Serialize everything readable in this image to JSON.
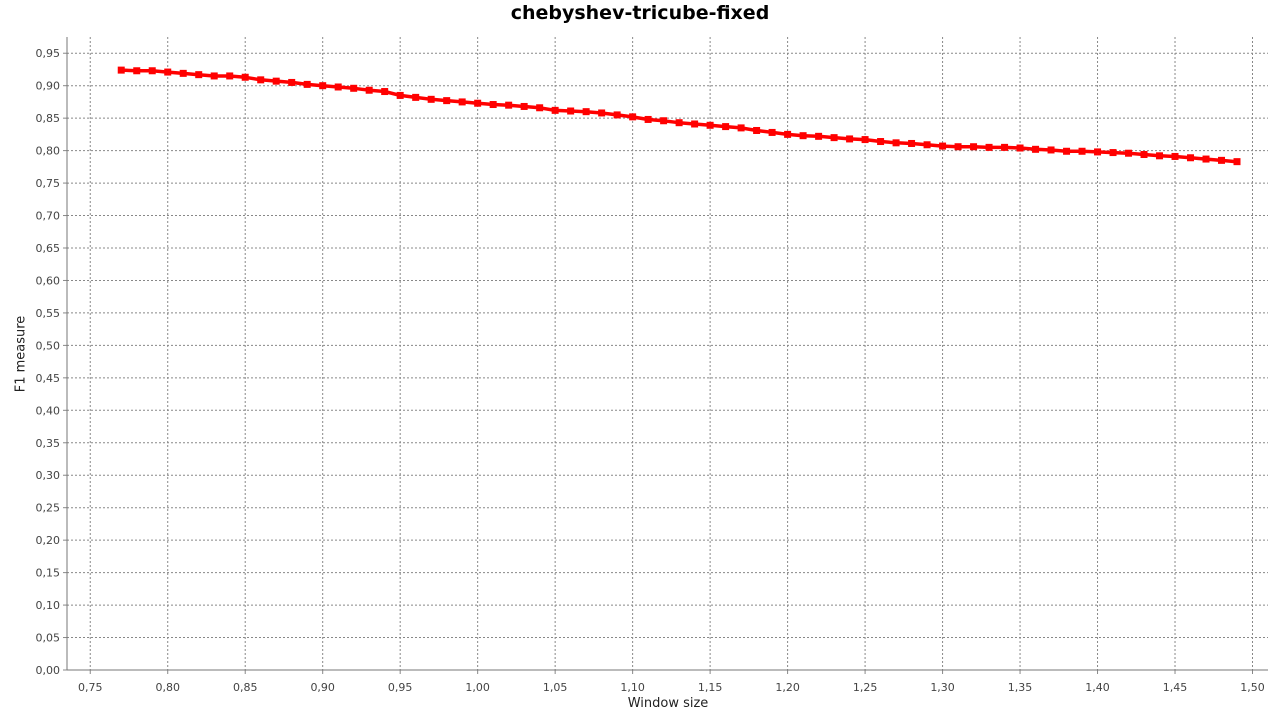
{
  "chart_data": {
    "type": "line",
    "title": "chebyshev-tricube-fixed",
    "xlabel": "Window size",
    "ylabel": "F1 measure",
    "xlim": [
      0.735,
      1.51
    ],
    "ylim": [
      0.0,
      0.975
    ],
    "x_ticks": [
      "0,75",
      "0,80",
      "0,85",
      "0,90",
      "0,95",
      "1,00",
      "1,05",
      "1,10",
      "1,15",
      "1,20",
      "1,25",
      "1,30",
      "1,35",
      "1,40",
      "1,45",
      "1,50"
    ],
    "y_ticks": [
      "0,00",
      "0,05",
      "0,10",
      "0,15",
      "0,20",
      "0,25",
      "0,30",
      "0,35",
      "0,40",
      "0,45",
      "0,50",
      "0,55",
      "0,60",
      "0,65",
      "0,70",
      "0,75",
      "0,80",
      "0,85",
      "0,90",
      "0,95"
    ],
    "grid": true,
    "legend": "none",
    "series": [
      {
        "color": "#ff0000",
        "marker": "square",
        "x": [
          0.77,
          0.78,
          0.79,
          0.8,
          0.81,
          0.82,
          0.83,
          0.84,
          0.85,
          0.86,
          0.87,
          0.88,
          0.89,
          0.9,
          0.91,
          0.92,
          0.93,
          0.94,
          0.95,
          0.96,
          0.97,
          0.98,
          0.99,
          1.0,
          1.01,
          1.02,
          1.03,
          1.04,
          1.05,
          1.06,
          1.07,
          1.08,
          1.09,
          1.1,
          1.11,
          1.12,
          1.13,
          1.14,
          1.15,
          1.16,
          1.17,
          1.18,
          1.19,
          1.2,
          1.21,
          1.22,
          1.23,
          1.24,
          1.25,
          1.26,
          1.27,
          1.28,
          1.29,
          1.3,
          1.31,
          1.32,
          1.33,
          1.34,
          1.35,
          1.36,
          1.37,
          1.38,
          1.39,
          1.4,
          1.41,
          1.42,
          1.43,
          1.44,
          1.45,
          1.46,
          1.47,
          1.48,
          1.49
        ],
        "y": [
          0.924,
          0.923,
          0.923,
          0.921,
          0.919,
          0.917,
          0.915,
          0.915,
          0.913,
          0.909,
          0.907,
          0.905,
          0.902,
          0.9,
          0.898,
          0.896,
          0.893,
          0.891,
          0.885,
          0.882,
          0.879,
          0.877,
          0.875,
          0.873,
          0.871,
          0.87,
          0.868,
          0.866,
          0.862,
          0.861,
          0.86,
          0.858,
          0.855,
          0.852,
          0.848,
          0.846,
          0.843,
          0.841,
          0.839,
          0.837,
          0.835,
          0.831,
          0.828,
          0.825,
          0.823,
          0.822,
          0.82,
          0.818,
          0.817,
          0.814,
          0.812,
          0.811,
          0.809,
          0.807,
          0.806,
          0.806,
          0.805,
          0.805,
          0.804,
          0.802,
          0.801,
          0.799,
          0.799,
          0.798,
          0.797,
          0.796,
          0.794,
          0.792,
          0.791,
          0.789,
          0.787,
          0.785,
          0.783
        ]
      }
    ]
  }
}
